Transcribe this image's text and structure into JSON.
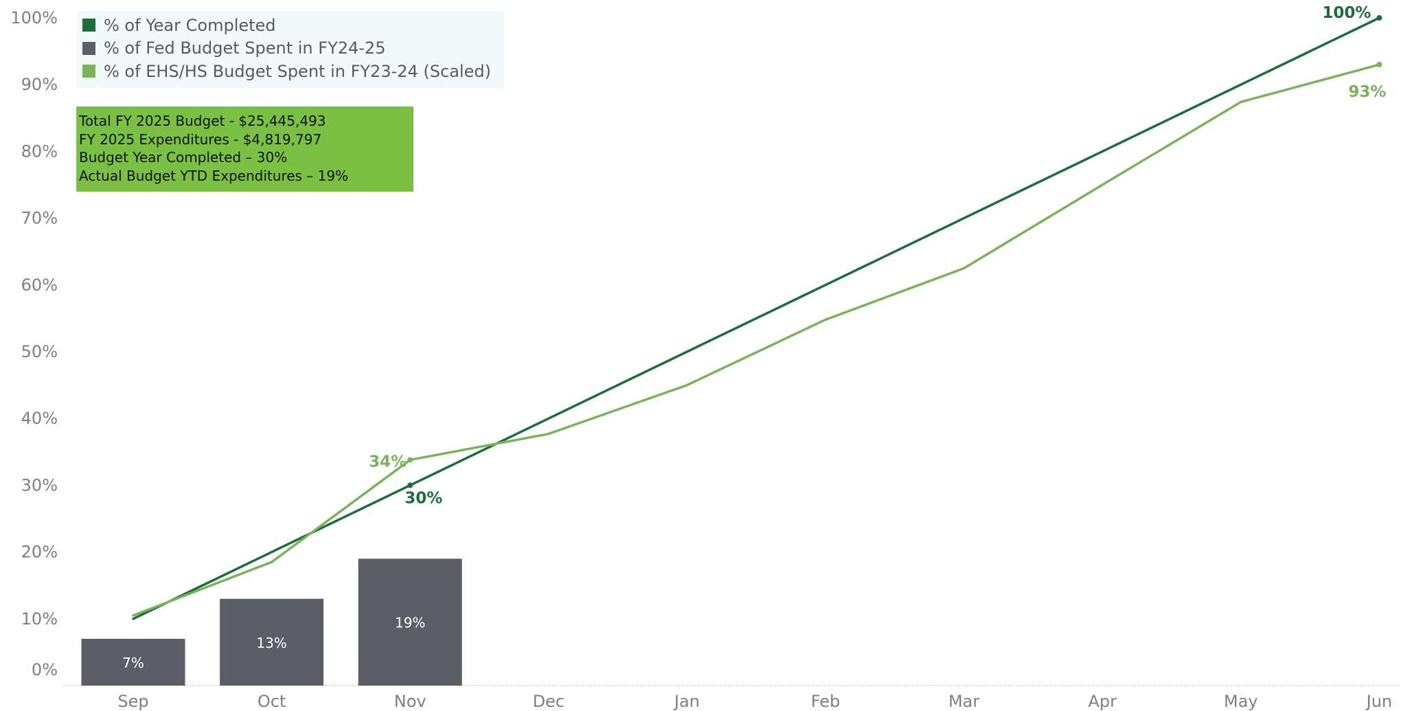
{
  "colors": {
    "year_completed": "#1b6e3c",
    "fed_budget": "#5b5e66",
    "ehs_hs_budget": "#7ab35b",
    "infobox_bg": "#7ac143",
    "legend_bg": "#f3f8f8",
    "axis_text": "#7f7f7f"
  },
  "legend": {
    "items": [
      {
        "label": "% of Year Completed",
        "color": "#1b6e3c"
      },
      {
        "label": "% of Fed Budget Spent in FY24-25",
        "color": "#5b5e66"
      },
      {
        "label": "% of EHS/HS Budget Spent in FY23-24 (Scaled)",
        "color": "#7ab35b"
      }
    ]
  },
  "infobox": {
    "lines": [
      "Total FY 2025  Budget  - $25,445,493",
      "FY 2025 Expenditures - $4,819,797",
      "Budget Year Completed – 30%",
      "Actual Budget YTD Expenditures – 19%"
    ]
  },
  "chart_data": {
    "type": "bar",
    "categories": [
      "Sep",
      "Oct",
      "Nov",
      "Dec",
      "Jan",
      "Feb",
      "Mar",
      "Apr",
      "May",
      "Jun"
    ],
    "y_ticks": [
      "0%",
      "10%",
      "20%",
      "30%",
      "40%",
      "50%",
      "60%",
      "70%",
      "80%",
      "90%",
      "100%"
    ],
    "ylim": [
      0,
      100
    ],
    "series": [
      {
        "name": "% of Fed Budget Spent in FY24-25",
        "kind": "bar",
        "values": [
          7,
          13,
          19,
          null,
          null,
          null,
          null,
          null,
          null,
          null
        ],
        "labels": [
          "7%",
          "13%",
          "19%",
          "",
          "",
          "",
          "",
          "",
          "",
          ""
        ]
      },
      {
        "name": "% of Year Completed",
        "kind": "line",
        "values": [
          10,
          20,
          30,
          40,
          50,
          60,
          70,
          80,
          90,
          100
        ],
        "annotations": [
          {
            "index": 2,
            "text": "30%",
            "position": "below-right"
          },
          {
            "index": 9,
            "text": "100%",
            "position": "above-left"
          }
        ]
      },
      {
        "name": "% of EHS/HS Budget Spent in FY23-24 (Scaled)",
        "kind": "line",
        "values": [
          10.5,
          18.5,
          33.8,
          37.7,
          45,
          54.8,
          62.5,
          75,
          87.4,
          93
        ],
        "annotations": [
          {
            "index": 2,
            "text": "34%",
            "position": "left"
          },
          {
            "index": 9,
            "text": "93%",
            "position": "below-left"
          }
        ]
      }
    ],
    "grid": false,
    "legend_position": "top-left"
  }
}
